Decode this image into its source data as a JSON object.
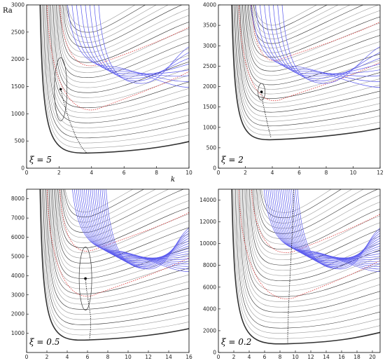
{
  "chart_data": [
    {
      "type": "line",
      "panel_label": "ξ = 5",
      "xlabel": "k",
      "ylabel": "Ra",
      "xlim": [
        0,
        10
      ],
      "ylim": [
        0,
        3000
      ],
      "xticks": [
        0,
        2,
        4,
        6,
        8,
        10
      ],
      "yticks": [
        0,
        500,
        1000,
        1500,
        2000,
        2500,
        3000
      ],
      "envelope_min": {
        "k": 4.0,
        "Ra": 280
      },
      "critical_point": {
        "k": 2.1,
        "Ra": 1450
      },
      "critical_path": [
        [
          2.1,
          1450
        ],
        [
          2.3,
          1200
        ],
        [
          2.6,
          900
        ],
        [
          3.0,
          600
        ],
        [
          3.4,
          380
        ],
        [
          3.7,
          280
        ]
      ]
    },
    {
      "type": "line",
      "panel_label": "ξ = 2",
      "xlabel": "",
      "ylabel": "",
      "xlim": [
        0,
        12
      ],
      "ylim": [
        0,
        4000
      ],
      "xticks": [
        0,
        2,
        4,
        6,
        8,
        10,
        12
      ],
      "yticks": [
        0,
        500,
        1000,
        1500,
        2000,
        2500,
        3000,
        3500,
        4000
      ],
      "envelope_min": {
        "k": 4.2,
        "Ra": 700
      },
      "critical_point": {
        "k": 3.2,
        "Ra": 1870
      },
      "critical_path": [
        [
          3.2,
          1870
        ],
        [
          3.3,
          1600
        ],
        [
          3.5,
          1300
        ],
        [
          3.7,
          1000
        ],
        [
          3.9,
          750
        ]
      ]
    },
    {
      "type": "line",
      "panel_label": "ξ = 0.5",
      "xlabel": "",
      "ylabel": "",
      "xlim": [
        0,
        16
      ],
      "ylim": [
        0,
        8500
      ],
      "xticks": [
        0,
        2,
        4,
        6,
        8,
        10,
        12,
        14,
        16
      ],
      "yticks": [
        1000,
        2000,
        3000,
        4000,
        5000,
        6000,
        7000,
        8000
      ],
      "envelope_min": {
        "k": 6.0,
        "Ra": 650
      },
      "critical_point": {
        "k": 5.8,
        "Ra": 3850
      },
      "critical_path": [
        [
          5.8,
          3850
        ],
        [
          5.9,
          3300
        ],
        [
          6.1,
          2600
        ],
        [
          6.3,
          1900
        ],
        [
          6.3,
          1200
        ],
        [
          6.2,
          700
        ]
      ]
    },
    {
      "type": "line",
      "panel_label": "ξ = 0.2",
      "xlabel": "",
      "ylabel": "",
      "xlim": [
        0,
        21
      ],
      "ylim": [
        0,
        15000
      ],
      "xticks": [
        0,
        2,
        4,
        6,
        8,
        10,
        12,
        14,
        16,
        18,
        20
      ],
      "yticks": [
        0,
        2000,
        4000,
        6000,
        8000,
        10000,
        12000,
        14000
      ],
      "envelope_min": {
        "k": 9.0,
        "Ra": 800
      },
      "critical_point": null,
      "critical_path": [
        [
          9.8,
          14900
        ],
        [
          9.6,
          11000
        ],
        [
          9.3,
          7000
        ],
        [
          9.1,
          4000
        ],
        [
          9.0,
          1500
        ],
        [
          9.0,
          800
        ]
      ]
    }
  ],
  "colors": {
    "contour_black": "#333333",
    "contour_gray": "#9a9a9a",
    "contour_blue": "#5a5aee",
    "contour_red_dotted": "#dd3333",
    "envelope": "#111111"
  }
}
